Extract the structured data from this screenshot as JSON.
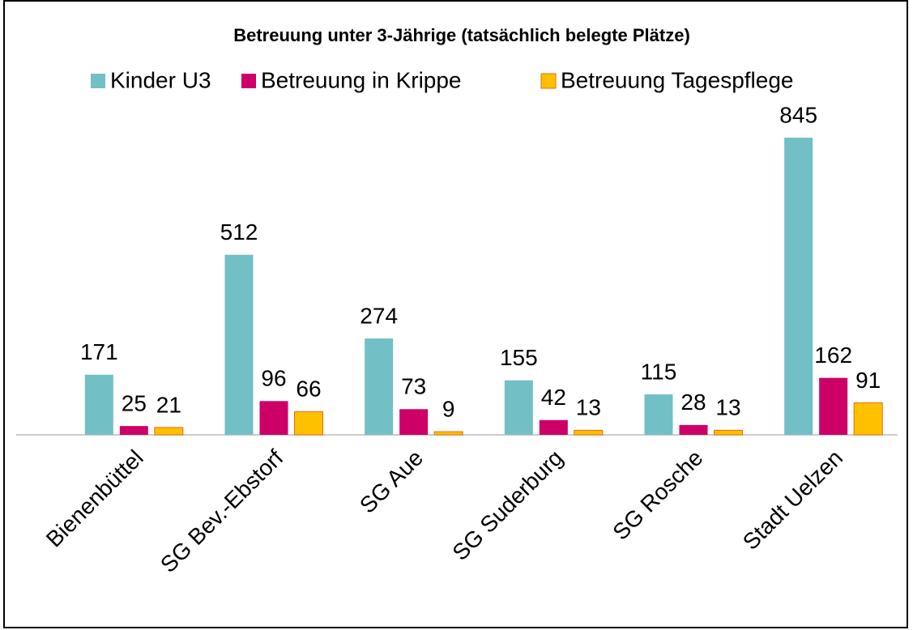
{
  "chart_data": {
    "type": "bar",
    "title": "Betreuung unter 3-Jährige (tatsächlich belegte Plätze)",
    "categories": [
      "Bienenbüttel",
      "SG Bev.-Ebstorf",
      "SG Aue",
      "SG Suderburg",
      "SG Rosche",
      "Stadt Uelzen"
    ],
    "series": [
      {
        "name": "Kinder U3",
        "color": "#72bfc5",
        "values": [
          171,
          512,
          274,
          155,
          115,
          845
        ]
      },
      {
        "name": "Betreuung in Krippe",
        "color": "#cc0066",
        "values": [
          25,
          96,
          73,
          42,
          28,
          162
        ]
      },
      {
        "name": "Betreuung Tagespflege",
        "color": "#ffc000",
        "values": [
          21,
          66,
          9,
          13,
          13,
          91
        ]
      }
    ]
  }
}
